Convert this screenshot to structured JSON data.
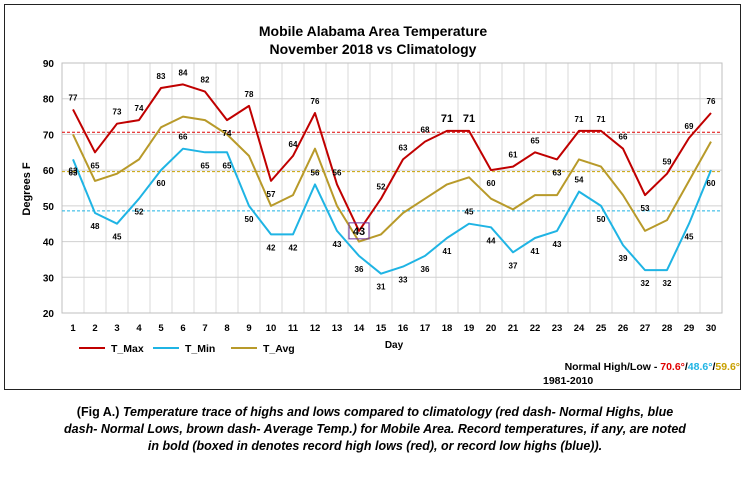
{
  "caption": {
    "lead": "(Fig A.)",
    "text": "Temperature trace of highs and lows compared to climatology (red dash- Normal Highs, blue dash- Normal Lows, brown dash- Average Temp.) for Mobile Area. Record temperatures, if any, are noted in bold (boxed in denotes record high lows (red), or record low highs (blue))."
  },
  "normals_note": {
    "prefix": "Normal High/Low - ",
    "high": "70.6°",
    "sep1": "/",
    "low": "48.6°",
    "sep2": "/",
    "avg": "59.6°",
    "period": "1981-2010",
    "high_color": "#e00000",
    "low_color": "#1fb4e4",
    "avg_color": "#c8a000"
  },
  "chart_data": {
    "type": "line",
    "title": "Mobile Alabama Area Temperature",
    "subtitle": "November 2018 vs Climatology",
    "xlabel": "Day",
    "ylabel": "Degrees F",
    "ylim": [
      20,
      90
    ],
    "yticks": [
      20,
      30,
      40,
      50,
      60,
      70,
      80,
      90
    ],
    "grid": true,
    "legend_position": "bottom-left",
    "x": [
      1,
      2,
      3,
      4,
      5,
      6,
      7,
      8,
      9,
      10,
      11,
      12,
      13,
      14,
      15,
      16,
      17,
      18,
      19,
      20,
      21,
      22,
      23,
      24,
      25,
      26,
      27,
      28,
      29,
      30
    ],
    "series": [
      {
        "name": "T_Max",
        "color": "#c00000",
        "values": [
          77,
          65,
          73,
          74,
          83,
          84,
          82,
          74,
          78,
          57,
          64,
          76,
          56,
          43,
          52,
          63,
          68,
          71,
          71,
          60,
          61,
          65,
          63,
          71,
          71,
          66,
          53,
          59,
          69,
          76
        ]
      },
      {
        "name": "T_Min",
        "color": "#1fb4e4",
        "values": [
          63,
          48,
          45,
          52,
          60,
          66,
          65,
          65,
          50,
          42,
          42,
          56,
          43,
          36,
          31,
          33,
          36,
          41,
          45,
          44,
          37,
          41,
          43,
          54,
          50,
          39,
          32,
          32,
          45,
          60
        ]
      },
      {
        "name": "T_Avg",
        "color": "#b89a2a",
        "values": [
          70,
          57,
          59,
          63,
          72,
          75,
          74,
          70,
          64,
          50,
          53,
          66,
          50,
          40,
          42,
          48,
          52,
          56,
          58,
          52,
          49,
          53,
          53,
          63,
          61,
          53,
          43,
          46,
          57,
          68
        ]
      }
    ],
    "normals": [
      {
        "label": "Normal High",
        "value": 70.6,
        "color": "#e00000"
      },
      {
        "label": "Normal Low",
        "value": 48.6,
        "color": "#1fb4e4"
      },
      {
        "label": "Average Temp.",
        "value": 59.6,
        "color": "#c8a000"
      }
    ],
    "records": [
      {
        "day": 14,
        "value": 43,
        "series": "T_Max",
        "type": "record low high",
        "boxed": true
      },
      {
        "day": 18,
        "value": 71,
        "series": "T_Max",
        "type": "record",
        "boxed": false
      },
      {
        "day": 19,
        "value": 71,
        "series": "T_Max",
        "type": "record",
        "boxed": false
      }
    ]
  }
}
